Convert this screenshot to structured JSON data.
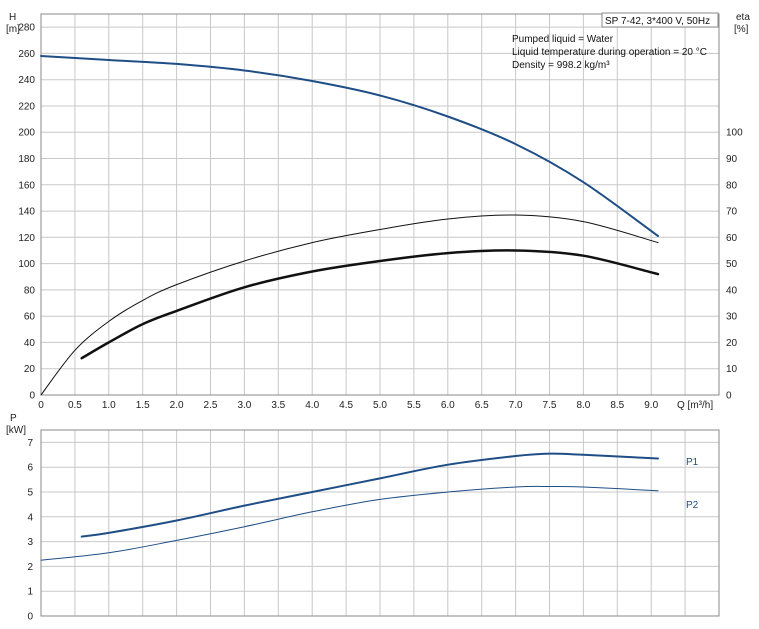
{
  "title": "SP 7-42, 3*400 V, 50Hz",
  "notes": [
    "Pumped liquid = Water",
    "Liquid temperature during operation = 20 °C",
    "Density = 998.2 kg/m³"
  ],
  "colors": {
    "blue": "#1f4e86",
    "black": "#111111",
    "grid": "#c8c8c8",
    "frame": "#8a8a8a"
  },
  "chart_data": [
    {
      "type": "line",
      "name": "head-efficiency",
      "ylabel_left": "H",
      "ylabel_left_unit": "[m]",
      "ylabel_right": "eta",
      "ylabel_right_unit": "[%]",
      "xlabel": "Q [m³/h]",
      "xlim": [
        0,
        10
      ],
      "ylim_left": [
        0,
        290
      ],
      "ylim_right": [
        0,
        145
      ],
      "x_ticks": [
        "0",
        "0.5",
        "1.0",
        "1.5",
        "2.0",
        "2.5",
        "3.0",
        "3.5",
        "4.0",
        "4.5",
        "5.0",
        "5.5",
        "6.0",
        "6.5",
        "7.0",
        "7.5",
        "8.0",
        "8.5",
        "9.0"
      ],
      "y_ticks_left": [
        "0",
        "20",
        "40",
        "60",
        "80",
        "100",
        "120",
        "140",
        "160",
        "180",
        "200",
        "220",
        "240",
        "260",
        "280"
      ],
      "y_ticks_right": [
        "0",
        "10",
        "20",
        "30",
        "40",
        "50",
        "60",
        "70",
        "80",
        "90",
        "100"
      ],
      "grid": true,
      "series": [
        {
          "axis": "left",
          "color": "#1f4e86",
          "width": 2,
          "x": [
            0,
            1,
            2,
            3,
            4,
            5,
            6,
            7,
            8,
            9.1
          ],
          "y": [
            258,
            255,
            252,
            247,
            239,
            228,
            212,
            191,
            162,
            121
          ]
        },
        {
          "axis": "right",
          "color": "#111111",
          "width": 1,
          "x": [
            0,
            0.5,
            1,
            1.5,
            2,
            3,
            4,
            5,
            6,
            7,
            8,
            9.1
          ],
          "y": [
            0,
            17,
            28,
            36,
            42,
            51,
            58,
            63,
            67,
            68.5,
            66,
            58
          ]
        },
        {
          "axis": "right",
          "color": "#111111",
          "width": 2.5,
          "x": [
            0.6,
            1,
            1.5,
            2,
            3,
            4,
            5,
            6,
            7,
            8,
            9.1
          ],
          "y": [
            14,
            20,
            27,
            32,
            41,
            47,
            51,
            54,
            55,
            53,
            46
          ]
        }
      ]
    },
    {
      "type": "line",
      "name": "power",
      "ylabel_left": "P",
      "ylabel_left_unit": "[kW]",
      "xlim": [
        0,
        10
      ],
      "ylim": [
        0,
        7.5
      ],
      "y_ticks": [
        "0",
        "1",
        "2",
        "3",
        "4",
        "5",
        "6",
        "7"
      ],
      "grid": true,
      "series": [
        {
          "name": "P1",
          "color": "#1f4e86",
          "width": 2,
          "x": [
            0.6,
            1,
            2,
            3,
            4,
            5,
            6,
            7,
            7.5,
            8,
            9.1
          ],
          "y": [
            3.2,
            3.35,
            3.85,
            4.45,
            5.0,
            5.55,
            6.1,
            6.45,
            6.55,
            6.5,
            6.35
          ]
        },
        {
          "name": "P2",
          "color": "#1f4e86",
          "width": 1,
          "x": [
            0,
            1,
            2,
            3,
            4,
            5,
            6,
            7,
            7.5,
            8,
            9.1
          ],
          "y": [
            2.25,
            2.55,
            3.05,
            3.6,
            4.2,
            4.7,
            5.0,
            5.2,
            5.22,
            5.2,
            5.05
          ]
        }
      ]
    }
  ]
}
